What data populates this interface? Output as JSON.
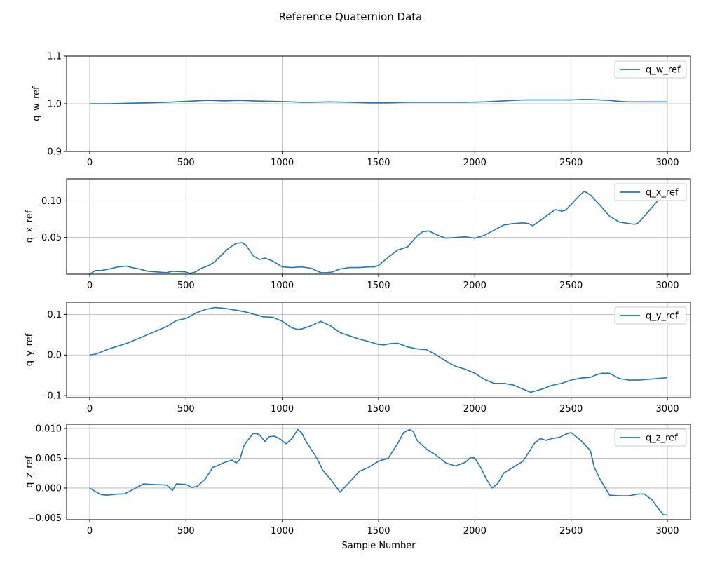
{
  "figure": {
    "title": "Reference Quaternion Data",
    "xlabel": "Sample Number"
  },
  "colors": {
    "line": "#1f77b4",
    "grid": "#b0b0b0",
    "axis": "#000000",
    "legend_border": "#cccccc"
  },
  "chart_data": [
    {
      "type": "line",
      "ylabel": "q_w_ref",
      "legend_position": "top-right",
      "grid": true,
      "xlim": [
        -120,
        3120
      ],
      "ylim": [
        0.9,
        1.1
      ],
      "xticks": [
        0,
        500,
        1000,
        1500,
        2000,
        2500,
        3000
      ],
      "yticks": [
        0.9,
        1.0,
        1.1
      ],
      "ytick_labels": [
        "0.9",
        "1.0",
        "1.1"
      ],
      "series": [
        {
          "name": "q_w_ref",
          "x": [
            0,
            100,
            200,
            300,
            400,
            500,
            550,
            600,
            630,
            700,
            780,
            850,
            950,
            1050,
            1100,
            1150,
            1250,
            1350,
            1450,
            1500,
            1550,
            1650,
            1700,
            1750,
            1850,
            1950,
            2050,
            2100,
            2150,
            2200,
            2250,
            2300,
            2400,
            2500,
            2550,
            2600,
            2650,
            2700,
            2750,
            2800,
            2850,
            2950,
            3000
          ],
          "y": [
            1.0,
            1.0,
            1.001,
            1.002,
            1.003,
            1.005,
            1.006,
            1.007,
            1.007,
            1.006,
            1.007,
            1.006,
            1.005,
            1.004,
            1.003,
            1.003,
            1.004,
            1.003,
            1.002,
            1.002,
            1.002,
            1.003,
            1.003,
            1.003,
            1.003,
            1.003,
            1.004,
            1.005,
            1.006,
            1.007,
            1.008,
            1.008,
            1.008,
            1.008,
            1.009,
            1.009,
            1.008,
            1.007,
            1.005,
            1.004,
            1.004,
            1.004,
            1.004
          ]
        }
      ]
    },
    {
      "type": "line",
      "ylabel": "q_x_ref",
      "legend_position": "top-right",
      "grid": true,
      "xlim": [
        -120,
        3120
      ],
      "ylim": [
        0.0,
        0.13
      ],
      "xticks": [
        0,
        500,
        1000,
        1500,
        2000,
        2500,
        3000
      ],
      "yticks": [
        0.05,
        0.1
      ],
      "ytick_labels": [
        "0.05",
        "0.10"
      ],
      "series": [
        {
          "name": "q_x_ref",
          "x": [
            0,
            30,
            60,
            100,
            150,
            190,
            220,
            260,
            300,
            400,
            430,
            500,
            520,
            550,
            580,
            620,
            650,
            700,
            720,
            760,
            790,
            810,
            850,
            880,
            910,
            950,
            1000,
            1050,
            1100,
            1150,
            1200,
            1230,
            1260,
            1300,
            1350,
            1400,
            1450,
            1480,
            1500,
            1550,
            1600,
            1650,
            1700,
            1730,
            1760,
            1800,
            1850,
            1900,
            1950,
            2000,
            2050,
            2100,
            2150,
            2200,
            2250,
            2280,
            2300,
            2350,
            2380,
            2400,
            2420,
            2450,
            2470,
            2500,
            2550,
            2570,
            2600,
            2650,
            2700,
            2750,
            2800,
            2830,
            2850,
            2900,
            2950,
            3000
          ],
          "y": [
            0.0,
            0.005,
            0.005,
            0.007,
            0.01,
            0.011,
            0.009,
            0.007,
            0.004,
            0.002,
            0.004,
            0.003,
            0.001,
            0.003,
            0.008,
            0.012,
            0.017,
            0.03,
            0.035,
            0.042,
            0.043,
            0.04,
            0.025,
            0.02,
            0.022,
            0.018,
            0.01,
            0.009,
            0.01,
            0.008,
            0.002,
            0.002,
            0.003,
            0.007,
            0.009,
            0.009,
            0.01,
            0.01,
            0.012,
            0.023,
            0.033,
            0.037,
            0.052,
            0.058,
            0.059,
            0.054,
            0.049,
            0.05,
            0.051,
            0.049,
            0.053,
            0.06,
            0.067,
            0.069,
            0.07,
            0.069,
            0.066,
            0.075,
            0.081,
            0.085,
            0.088,
            0.086,
            0.087,
            0.095,
            0.109,
            0.113,
            0.108,
            0.094,
            0.079,
            0.071,
            0.069,
            0.068,
            0.07,
            0.085,
            0.1,
            0.11
          ]
        }
      ]
    },
    {
      "type": "line",
      "ylabel": "q_y_ref",
      "legend_position": "top-right",
      "grid": true,
      "xlim": [
        -120,
        3120
      ],
      "ylim": [
        -0.105,
        0.13
      ],
      "xticks": [
        0,
        500,
        1000,
        1500,
        2000,
        2500,
        3000
      ],
      "yticks": [
        -0.1,
        0.0,
        0.1
      ],
      "ytick_labels": [
        "−0.1",
        "0.0",
        "0.1"
      ],
      "series": [
        {
          "name": "q_y_ref",
          "x": [
            0,
            30,
            100,
            200,
            300,
            400,
            450,
            500,
            550,
            600,
            650,
            700,
            800,
            850,
            900,
            950,
            1000,
            1050,
            1080,
            1100,
            1150,
            1200,
            1250,
            1300,
            1400,
            1450,
            1500,
            1530,
            1560,
            1600,
            1650,
            1700,
            1750,
            1800,
            1850,
            1900,
            1950,
            2000,
            2050,
            2100,
            2150,
            2200,
            2250,
            2290,
            2350,
            2400,
            2450,
            2500,
            2550,
            2600,
            2630,
            2660,
            2700,
            2750,
            2800,
            2850,
            2900,
            2950,
            3000
          ],
          "y": [
            0.0,
            0.002,
            0.015,
            0.03,
            0.05,
            0.07,
            0.085,
            0.09,
            0.103,
            0.112,
            0.117,
            0.115,
            0.107,
            0.101,
            0.094,
            0.093,
            0.083,
            0.067,
            0.063,
            0.064,
            0.072,
            0.083,
            0.072,
            0.055,
            0.039,
            0.033,
            0.026,
            0.025,
            0.028,
            0.029,
            0.02,
            0.015,
            0.013,
            0.0,
            -0.015,
            -0.028,
            -0.035,
            -0.045,
            -0.06,
            -0.07,
            -0.07,
            -0.074,
            -0.084,
            -0.092,
            -0.084,
            -0.075,
            -0.07,
            -0.062,
            -0.057,
            -0.055,
            -0.049,
            -0.045,
            -0.045,
            -0.058,
            -0.062,
            -0.062,
            -0.06,
            -0.058,
            -0.056
          ]
        }
      ]
    },
    {
      "type": "line",
      "ylabel": "q_z_ref",
      "legend_position": "top-right",
      "grid": true,
      "xlim": [
        -120,
        3120
      ],
      "ylim": [
        -0.0053,
        0.0107
      ],
      "xticks": [
        0,
        500,
        1000,
        1500,
        2000,
        2500,
        3000
      ],
      "yticks": [
        -0.005,
        0.0,
        0.005,
        0.01
      ],
      "ytick_labels": [
        "−0.005",
        "0.000",
        "0.005",
        "0.010"
      ],
      "series": [
        {
          "name": "q_z_ref",
          "x": [
            0,
            30,
            60,
            90,
            120,
            150,
            180,
            210,
            240,
            280,
            320,
            400,
            430,
            450,
            500,
            530,
            560,
            600,
            620,
            640,
            660,
            700,
            740,
            760,
            780,
            800,
            820,
            850,
            880,
            910,
            930,
            960,
            990,
            1020,
            1050,
            1080,
            1100,
            1120,
            1150,
            1180,
            1210,
            1250,
            1280,
            1300,
            1350,
            1400,
            1450,
            1500,
            1550,
            1600,
            1630,
            1660,
            1680,
            1700,
            1750,
            1800,
            1850,
            1900,
            1950,
            1980,
            2000,
            2030,
            2060,
            2090,
            2120,
            2150,
            2200,
            2250,
            2280,
            2310,
            2340,
            2370,
            2400,
            2440,
            2470,
            2500,
            2550,
            2600,
            2620,
            2650,
            2700,
            2750,
            2800,
            2850,
            2880,
            2920,
            2950,
            2980,
            3000
          ],
          "y": [
            0.0,
            -0.0006,
            -0.0011,
            -0.0012,
            -0.0011,
            -0.001,
            -0.001,
            -0.0005,
            0.0,
            0.0007,
            0.0006,
            0.0005,
            -0.0004,
            0.0007,
            0.0006,
            0.0001,
            0.0003,
            0.0015,
            0.0025,
            0.0035,
            0.0037,
            0.0043,
            0.0047,
            0.0042,
            0.0048,
            0.007,
            0.008,
            0.0092,
            0.009,
            0.0078,
            0.0086,
            0.0087,
            0.0082,
            0.0074,
            0.0083,
            0.0098,
            0.0093,
            0.008,
            0.0065,
            0.005,
            0.003,
            0.0015,
            0.0002,
            -0.0007,
            0.001,
            0.0028,
            0.0035,
            0.0045,
            0.005,
            0.0075,
            0.0093,
            0.0098,
            0.0095,
            0.008,
            0.0065,
            0.0055,
            0.0042,
            0.0037,
            0.0043,
            0.0052,
            0.005,
            0.0035,
            0.0015,
            0.0,
            0.0008,
            0.0025,
            0.0035,
            0.0045,
            0.006,
            0.0075,
            0.0083,
            0.008,
            0.0083,
            0.0085,
            0.009,
            0.0093,
            0.008,
            0.0063,
            0.0035,
            0.0015,
            -0.0012,
            -0.0013,
            -0.0013,
            -0.001,
            -0.001,
            -0.002,
            -0.0033,
            -0.0045,
            -0.0045
          ]
        }
      ]
    }
  ]
}
